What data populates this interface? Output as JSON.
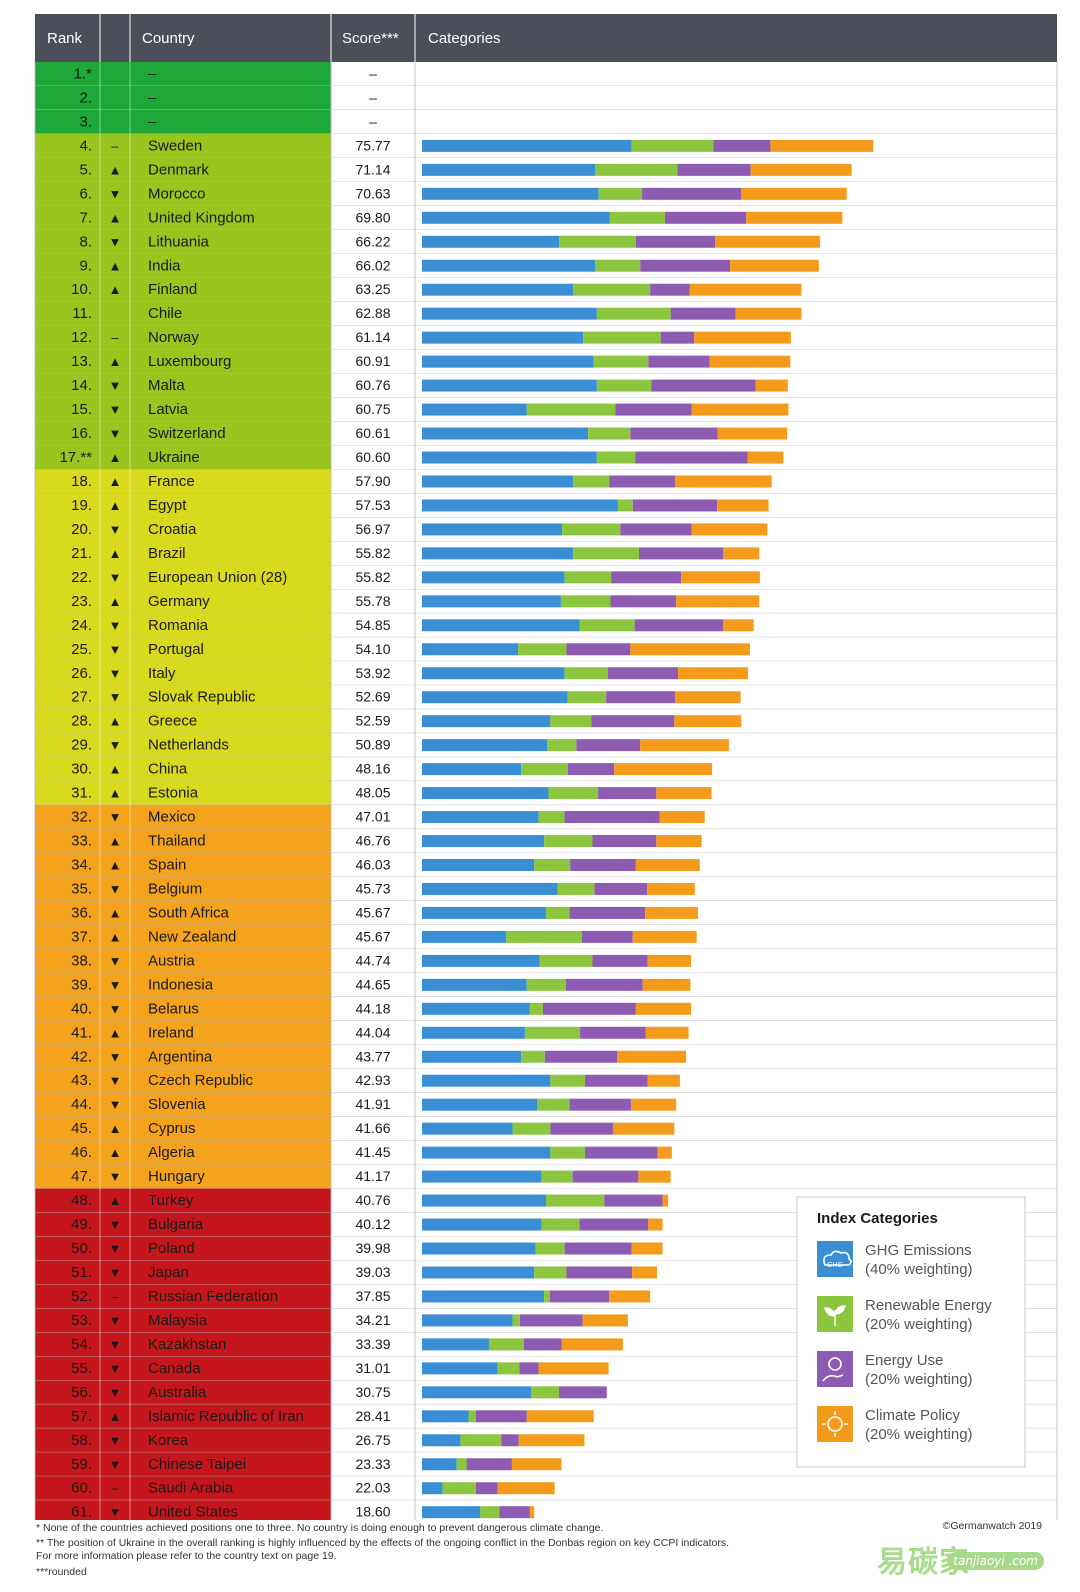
{
  "chart_data": {
    "type": "table",
    "columns": {
      "rank": "Rank",
      "country": "Country",
      "score": "Score***",
      "categories": "Categories"
    },
    "band_colors": {
      "green": "#1fa83a",
      "lightgreen": "#9ac41e",
      "yellow": "#d9d91e",
      "orange": "#f5a31c",
      "red": "#c4161c"
    },
    "category_colors": [
      "#3a8fd4",
      "#8cc63f",
      "#8e5bb3",
      "#f59b1c"
    ],
    "category_max": [
      40,
      20,
      20,
      20
    ],
    "rows": [
      {
        "rank": "1.*",
        "trend": "",
        "country": "–",
        "score": "–",
        "band": "green",
        "parts": [
          0,
          0,
          0,
          0
        ]
      },
      {
        "rank": "2.",
        "trend": "",
        "country": "–",
        "score": "–",
        "band": "green",
        "parts": [
          0,
          0,
          0,
          0
        ]
      },
      {
        "rank": "3.",
        "trend": "",
        "country": "–",
        "score": "–",
        "band": "green",
        "parts": [
          0,
          0,
          0,
          0
        ]
      },
      {
        "rank": "4.",
        "trend": "–",
        "country": "Sweden",
        "score": "75.77",
        "band": "lightgreen",
        "parts": [
          33.8,
          13.2,
          9.2,
          16.6
        ]
      },
      {
        "rank": "5.",
        "trend": "▲",
        "country": "Denmark",
        "score": "71.14",
        "band": "lightgreen",
        "parts": [
          27.9,
          13.3,
          11.8,
          16.3
        ]
      },
      {
        "rank": "6.",
        "trend": "▼",
        "country": "Morocco",
        "score": "70.63",
        "band": "lightgreen",
        "parts": [
          28.5,
          7.0,
          16.0,
          17.0
        ]
      },
      {
        "rank": "7.",
        "trend": "▲",
        "country": "United Kingdom",
        "score": "69.80",
        "band": "lightgreen",
        "parts": [
          30.3,
          8.9,
          13.1,
          15.5
        ]
      },
      {
        "rank": "8.",
        "trend": "▼",
        "country": "Lithuania",
        "score": "66.22",
        "band": "lightgreen",
        "parts": [
          22.1,
          12.4,
          12.8,
          16.9
        ]
      },
      {
        "rank": "9.",
        "trend": "▲",
        "country": "India",
        "score": "66.02",
        "band": "lightgreen",
        "parts": [
          27.9,
          7.3,
          14.5,
          14.3
        ]
      },
      {
        "rank": "10.",
        "trend": "▲",
        "country": "Finland",
        "score": "63.25",
        "band": "lightgreen",
        "parts": [
          24.4,
          12.4,
          6.4,
          18.0
        ]
      },
      {
        "rank": "11.",
        "trend": "",
        "country": "Chile",
        "score": "62.88",
        "band": "lightgreen",
        "parts": [
          28.2,
          11.9,
          10.5,
          10.6
        ]
      },
      {
        "rank": "12.",
        "trend": "–",
        "country": "Norway",
        "score": "61.14",
        "band": "lightgreen",
        "parts": [
          26.0,
          12.5,
          5.4,
          15.6
        ]
      },
      {
        "rank": "13.",
        "trend": "▲",
        "country": "Luxembourg",
        "score": "60.91",
        "band": "lightgreen",
        "parts": [
          27.7,
          8.8,
          9.9,
          13.0
        ]
      },
      {
        "rank": "14.",
        "trend": "▼",
        "country": "Malta",
        "score": "60.76",
        "band": "lightgreen",
        "parts": [
          28.2,
          8.8,
          16.8,
          5.2
        ]
      },
      {
        "rank": "15.",
        "trend": "▼",
        "country": "Latvia",
        "score": "60.75",
        "band": "lightgreen",
        "parts": [
          16.9,
          14.3,
          12.3,
          15.6
        ]
      },
      {
        "rank": "16.",
        "trend": "▼",
        "country": "Switzerland",
        "score": "60.61",
        "band": "lightgreen",
        "parts": [
          26.8,
          6.8,
          14.1,
          11.2
        ]
      },
      {
        "rank": "17.**",
        "trend": "▲",
        "country": "Ukraine",
        "score": "60.60",
        "band": "lightgreen",
        "parts": [
          28.2,
          6.2,
          18.1,
          5.8
        ]
      },
      {
        "rank": "18.",
        "trend": "▲",
        "country": "France",
        "score": "57.90",
        "band": "yellow",
        "parts": [
          24.4,
          5.8,
          10.6,
          15.6
        ]
      },
      {
        "rank": "19.",
        "trend": "▲",
        "country": "Egypt",
        "score": "57.53",
        "band": "yellow",
        "parts": [
          31.6,
          2.4,
          13.6,
          8.3
        ]
      },
      {
        "rank": "20.",
        "trend": "▼",
        "country": "Croatia",
        "score": "56.97",
        "band": "yellow",
        "parts": [
          22.6,
          9.4,
          11.5,
          12.2
        ]
      },
      {
        "rank": "21.",
        "trend": "▲",
        "country": "Brazil",
        "score": "55.82",
        "band": "yellow",
        "parts": [
          24.4,
          10.6,
          13.6,
          5.8
        ]
      },
      {
        "rank": "22.",
        "trend": "▼",
        "country": "European Union (28)",
        "score": "55.82",
        "band": "yellow",
        "parts": [
          23.0,
          7.5,
          11.3,
          12.7
        ]
      },
      {
        "rank": "23.",
        "trend": "▲",
        "country": "Germany",
        "score": "55.78",
        "band": "yellow",
        "parts": [
          22.4,
          8.0,
          10.6,
          13.4
        ]
      },
      {
        "rank": "24.",
        "trend": "▼",
        "country": "Romania",
        "score": "54.85",
        "band": "yellow",
        "parts": [
          25.4,
          8.9,
          14.3,
          4.9
        ]
      },
      {
        "rank": "25.",
        "trend": "▼",
        "country": "Portugal",
        "score": "54.10",
        "band": "yellow",
        "parts": [
          15.5,
          7.8,
          10.3,
          19.3
        ]
      },
      {
        "rank": "26.",
        "trend": "▼",
        "country": "Italy",
        "score": "53.92",
        "band": "yellow",
        "parts": [
          23.0,
          7.0,
          11.3,
          11.3
        ]
      },
      {
        "rank": "27.",
        "trend": "▼",
        "country": "Slovak Republic",
        "score": "52.69",
        "band": "yellow",
        "parts": [
          23.5,
          6.2,
          11.1,
          10.6
        ]
      },
      {
        "rank": "28.",
        "trend": "▲",
        "country": "Greece",
        "score": "52.59",
        "band": "yellow",
        "parts": [
          20.7,
          6.6,
          13.4,
          10.8
        ]
      },
      {
        "rank": "29.",
        "trend": "▼",
        "country": "Netherlands",
        "score": "50.89",
        "band": "yellow",
        "parts": [
          20.2,
          4.7,
          10.3,
          14.3
        ]
      },
      {
        "rank": "30.",
        "trend": "▲",
        "country": "China",
        "score": "48.16",
        "band": "yellow",
        "parts": [
          16.0,
          7.5,
          7.5,
          15.8
        ]
      },
      {
        "rank": "31.",
        "trend": "▲",
        "country": "Estonia",
        "score": "48.05",
        "band": "yellow",
        "parts": [
          20.4,
          8.0,
          9.4,
          8.9
        ]
      },
      {
        "rank": "32.",
        "trend": "▼",
        "country": "Mexico",
        "score": "47.01",
        "band": "orange",
        "parts": [
          18.8,
          4.2,
          15.3,
          7.3
        ]
      },
      {
        "rank": "33.",
        "trend": "▲",
        "country": "Thailand",
        "score": "46.76",
        "band": "orange",
        "parts": [
          19.7,
          7.8,
          10.3,
          7.3
        ]
      },
      {
        "rank": "34.",
        "trend": "▲",
        "country": "Spain",
        "score": "46.03",
        "band": "orange",
        "parts": [
          18.1,
          5.8,
          10.6,
          10.3
        ]
      },
      {
        "rank": "35.",
        "trend": "▼",
        "country": "Belgium",
        "score": "45.73",
        "band": "orange",
        "parts": [
          21.9,
          5.9,
          8.5,
          7.7
        ]
      },
      {
        "rank": "36.",
        "trend": "▲",
        "country": "South Africa",
        "score": "45.67",
        "band": "orange",
        "parts": [
          20.0,
          3.8,
          12.2,
          8.5
        ]
      },
      {
        "rank": "37.",
        "trend": "▲",
        "country": "New Zealand",
        "score": "45.67",
        "band": "orange",
        "parts": [
          13.6,
          12.2,
          8.2,
          10.3
        ]
      },
      {
        "rank": "38.",
        "trend": "▼",
        "country": "Austria",
        "score": "44.74",
        "band": "orange",
        "parts": [
          19.0,
          8.5,
          8.9,
          7.0
        ]
      },
      {
        "rank": "39.",
        "trend": "▼",
        "country": "Indonesia",
        "score": "44.65",
        "band": "orange",
        "parts": [
          16.9,
          6.3,
          12.4,
          7.7
        ]
      },
      {
        "rank": "40.",
        "trend": "▼",
        "country": "Belarus",
        "score": "44.18",
        "band": "orange",
        "parts": [
          17.4,
          2.1,
          15.0,
          8.9
        ]
      },
      {
        "rank": "41.",
        "trend": "▲",
        "country": "Ireland",
        "score": "44.04",
        "band": "orange",
        "parts": [
          16.6,
          8.9,
          10.6,
          6.9
        ]
      },
      {
        "rank": "42.",
        "trend": "▼",
        "country": "Argentina",
        "score": "43.77",
        "band": "orange",
        "parts": [
          16.0,
          3.8,
          11.7,
          11.1
        ]
      },
      {
        "rank": "43.",
        "trend": "▼",
        "country": "Czech Republic",
        "score": "42.93",
        "band": "orange",
        "parts": [
          20.7,
          5.6,
          10.1,
          5.2
        ]
      },
      {
        "rank": "44.",
        "trend": "▼",
        "country": "Slovenia",
        "score": "41.91",
        "band": "orange",
        "parts": [
          18.6,
          5.2,
          9.9,
          7.3
        ]
      },
      {
        "rank": "45.",
        "trend": "▲",
        "country": "Cyprus",
        "score": "41.66",
        "band": "orange",
        "parts": [
          14.6,
          6.1,
          10.1,
          9.9
        ]
      },
      {
        "rank": "46.",
        "trend": "▲",
        "country": "Algeria",
        "score": "41.45",
        "band": "orange",
        "parts": [
          20.7,
          5.6,
          11.7,
          2.3
        ]
      },
      {
        "rank": "47.",
        "trend": "▼",
        "country": "Hungary",
        "score": "41.17",
        "band": "orange",
        "parts": [
          19.3,
          5.0,
          10.6,
          5.2
        ]
      },
      {
        "rank": "48.",
        "trend": "▲",
        "country": "Turkey",
        "score": "40.76",
        "band": "red",
        "parts": [
          20.0,
          9.4,
          9.4,
          0.9
        ]
      },
      {
        "rank": "49.",
        "trend": "▼",
        "country": "Bulgaria",
        "score": "40.12",
        "band": "red",
        "parts": [
          19.3,
          6.1,
          11.1,
          2.3
        ]
      },
      {
        "rank": "50.",
        "trend": "▼",
        "country": "Poland",
        "score": "39.98",
        "band": "red",
        "parts": [
          18.3,
          4.7,
          10.8,
          5.0
        ]
      },
      {
        "rank": "51.",
        "trend": "▼",
        "country": "Japan",
        "score": "39.03",
        "band": "red",
        "parts": [
          18.1,
          5.2,
          10.6,
          4.0
        ]
      },
      {
        "rank": "52.",
        "trend": "–",
        "country": "Russian Federation",
        "score": "37.85",
        "band": "red",
        "parts": [
          19.7,
          0.9,
          9.6,
          6.6
        ]
      },
      {
        "rank": "53.",
        "trend": "▼",
        "country": "Malaysia",
        "score": "34.21",
        "band": "red",
        "parts": [
          14.6,
          1.2,
          10.1,
          7.3
        ]
      },
      {
        "rank": "54.",
        "trend": "▼",
        "country": "Kazakhstan",
        "score": "33.39",
        "band": "red",
        "parts": [
          10.8,
          5.6,
          6.1,
          9.9
        ]
      },
      {
        "rank": "55.",
        "trend": "▼",
        "country": "Canada",
        "score": "31.01",
        "band": "red",
        "parts": [
          12.2,
          3.5,
          3.1,
          11.3
        ]
      },
      {
        "rank": "56.",
        "trend": "▼",
        "country": "Australia",
        "score": "30.75",
        "band": "red",
        "parts": [
          17.6,
          4.5,
          7.7,
          0
        ]
      },
      {
        "rank": "57.",
        "trend": "▲",
        "country": "Islamic Republic of Iran",
        "score": "28.41",
        "band": "red",
        "parts": [
          7.5,
          1.2,
          8.2,
          10.8
        ]
      },
      {
        "rank": "58.",
        "trend": "▼",
        "country": "Korea",
        "score": "26.75",
        "band": "red",
        "parts": [
          6.2,
          6.6,
          2.8,
          10.6
        ]
      },
      {
        "rank": "59.",
        "trend": "▼",
        "country": "Chinese Taipei",
        "score": "23.33",
        "band": "red",
        "parts": [
          5.6,
          1.6,
          7.3,
          8.0
        ]
      },
      {
        "rank": "60.",
        "trend": "–",
        "country": "Saudi Arabia",
        "score": "22.03",
        "band": "red",
        "parts": [
          3.3,
          5.4,
          3.5,
          9.2
        ]
      },
      {
        "rank": "61.",
        "trend": "▼",
        "country": "United States",
        "score": "18.60",
        "band": "red",
        "parts": [
          9.4,
          3.1,
          4.9,
          0.7
        ]
      }
    ],
    "legend": {
      "title": "Index Categories",
      "items": [
        {
          "name": "GHG Emissions",
          "weight": "(40% weighting)",
          "icon": "ghg-cloud-icon",
          "badge": "GHG"
        },
        {
          "name": "Renewable Energy",
          "weight": "(20% weighting)",
          "icon": "leaf-icon"
        },
        {
          "name": "Energy Use",
          "weight": "(20% weighting)",
          "icon": "hand-bulb-icon"
        },
        {
          "name": "Climate Policy",
          "weight": "(20% weighting)",
          "icon": "policy-sun-icon"
        }
      ]
    },
    "footnotes": [
      "*   None of the countries achieved positions one to three. No country is doing enough to prevent dangerous climate change.",
      "**  The position of Ukraine in the overall ranking is highly influenced by the effects of the ongoing conflict in the Donbas region on key CCPI indicators.",
      "      For more information please refer to the country text on page 19.",
      "***rounded"
    ],
    "copyright": "©Germanwatch 2019",
    "watermark": "易碳家",
    "watermark_sub": "tanjiaoyi .com"
  }
}
